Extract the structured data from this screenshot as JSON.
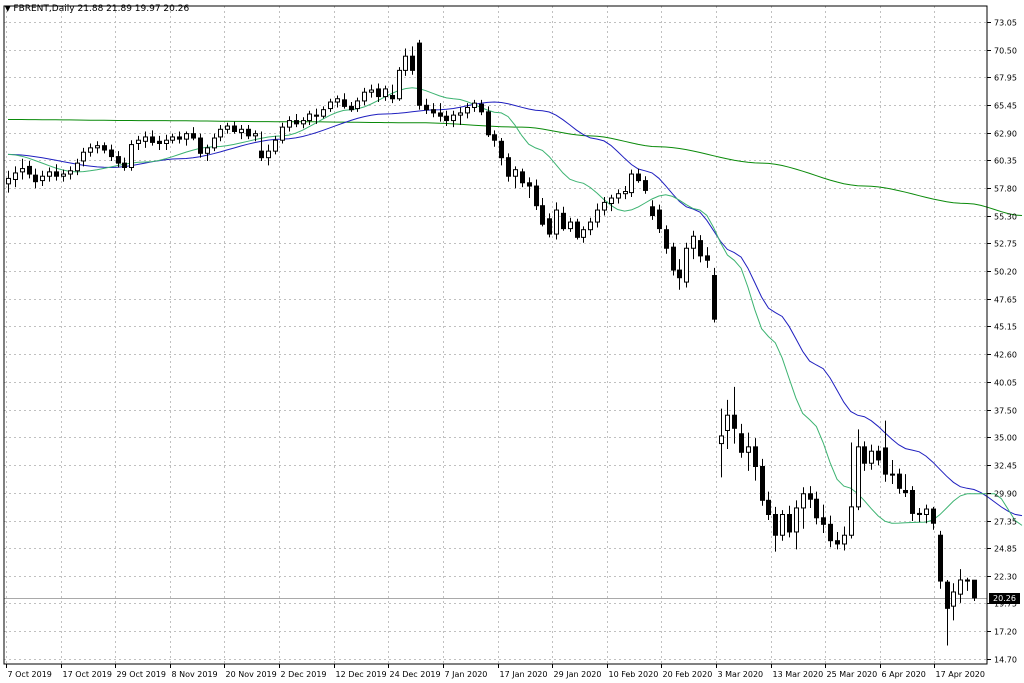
{
  "header": {
    "symbol": "FBRENT,Daily",
    "quote": "21.88 21.89 19.97 20.26"
  },
  "current_price_label": "20.26",
  "colors": {
    "background": "#ffffff",
    "grid": "#c0c0c0",
    "bull_body": "#ffffff",
    "bear_body": "#000000",
    "candle_outline": "#000000",
    "ma_fast": "#3cb371",
    "ma_mid": "#1f1fbf",
    "ma_slow": "#0a8a0a",
    "price_line": "#a9a9a9"
  },
  "chart_data": {
    "type": "candlestick",
    "title": "",
    "y_ticks": [
      "73.05",
      "70.50",
      "67.95",
      "65.45",
      "62.90",
      "60.35",
      "57.80",
      "55.30",
      "52.75",
      "50.20",
      "47.65",
      "45.15",
      "42.60",
      "40.05",
      "37.50",
      "35.00",
      "32.45",
      "29.90",
      "27.35",
      "24.85",
      "22.30",
      "19.75",
      "17.20",
      "14.70"
    ],
    "x_labels": [
      "7 Oct 2019",
      "17 Oct 2019",
      "29 Oct 2019",
      "8 Nov 2019",
      "20 Nov 2019",
      "2 Dec 2019",
      "12 Dec 2019",
      "24 Dec 2019",
      "7 Jan 2020",
      "17 Jan 2020",
      "29 Jan 2020",
      "10 Feb 2020",
      "20 Feb 2020",
      "3 Mar 2020",
      "13 Mar 2020",
      "25 Mar 2020",
      "6 Apr 2020",
      "17 Apr 2020"
    ],
    "ylim": [
      14.2,
      74.5
    ],
    "current_price": 20.26,
    "candles": [
      {
        "o": 58.2,
        "h": 59.4,
        "l": 57.4,
        "c": 58.7
      },
      {
        "o": 58.6,
        "h": 59.8,
        "l": 57.9,
        "c": 59.2
      },
      {
        "o": 59.3,
        "h": 60.5,
        "l": 58.6,
        "c": 59.6
      },
      {
        "o": 59.8,
        "h": 60.3,
        "l": 58.7,
        "c": 59.1
      },
      {
        "o": 59.0,
        "h": 59.6,
        "l": 57.8,
        "c": 58.4
      },
      {
        "o": 58.5,
        "h": 59.4,
        "l": 58.0,
        "c": 58.9
      },
      {
        "o": 58.9,
        "h": 59.7,
        "l": 58.4,
        "c": 59.3
      },
      {
        "o": 59.3,
        "h": 60.0,
        "l": 58.5,
        "c": 58.9
      },
      {
        "o": 58.9,
        "h": 59.5,
        "l": 58.4,
        "c": 59.1
      },
      {
        "o": 59.1,
        "h": 59.8,
        "l": 58.6,
        "c": 59.4
      },
      {
        "o": 59.4,
        "h": 60.5,
        "l": 59.0,
        "c": 60.1
      },
      {
        "o": 60.3,
        "h": 61.5,
        "l": 59.8,
        "c": 61.1
      },
      {
        "o": 61.1,
        "h": 61.9,
        "l": 60.7,
        "c": 61.5
      },
      {
        "o": 61.5,
        "h": 62.1,
        "l": 61.0,
        "c": 61.7
      },
      {
        "o": 61.7,
        "h": 62.0,
        "l": 61.0,
        "c": 61.3
      },
      {
        "o": 61.3,
        "h": 61.8,
        "l": 60.3,
        "c": 60.7
      },
      {
        "o": 60.7,
        "h": 61.2,
        "l": 59.7,
        "c": 60.1
      },
      {
        "o": 60.1,
        "h": 60.6,
        "l": 59.4,
        "c": 59.7
      },
      {
        "o": 59.7,
        "h": 62.2,
        "l": 59.4,
        "c": 61.8
      },
      {
        "o": 61.9,
        "h": 62.6,
        "l": 61.3,
        "c": 62.2
      },
      {
        "o": 62.1,
        "h": 63.0,
        "l": 61.5,
        "c": 62.5
      },
      {
        "o": 62.5,
        "h": 63.1,
        "l": 61.7,
        "c": 62.0
      },
      {
        "o": 62.1,
        "h": 62.6,
        "l": 61.3,
        "c": 61.9
      },
      {
        "o": 61.9,
        "h": 62.7,
        "l": 61.3,
        "c": 62.2
      },
      {
        "o": 62.2,
        "h": 62.8,
        "l": 61.9,
        "c": 62.5
      },
      {
        "o": 62.5,
        "h": 63.0,
        "l": 61.9,
        "c": 62.3
      },
      {
        "o": 62.3,
        "h": 63.0,
        "l": 61.7,
        "c": 62.8
      },
      {
        "o": 62.8,
        "h": 63.4,
        "l": 62.2,
        "c": 62.4
      },
      {
        "o": 62.4,
        "h": 62.8,
        "l": 60.6,
        "c": 61.0
      },
      {
        "o": 61.0,
        "h": 61.8,
        "l": 60.3,
        "c": 61.5
      },
      {
        "o": 61.5,
        "h": 62.8,
        "l": 61.2,
        "c": 62.4
      },
      {
        "o": 62.5,
        "h": 63.6,
        "l": 62.1,
        "c": 63.2
      },
      {
        "o": 63.2,
        "h": 63.8,
        "l": 62.8,
        "c": 63.5
      },
      {
        "o": 63.5,
        "h": 63.9,
        "l": 62.8,
        "c": 63.0
      },
      {
        "o": 62.9,
        "h": 63.6,
        "l": 62.3,
        "c": 63.2
      },
      {
        "o": 63.2,
        "h": 63.6,
        "l": 62.3,
        "c": 62.6
      },
      {
        "o": 62.6,
        "h": 63.1,
        "l": 62.1,
        "c": 62.8
      },
      {
        "o": 61.2,
        "h": 63.0,
        "l": 60.3,
        "c": 60.6
      },
      {
        "o": 60.6,
        "h": 61.8,
        "l": 59.9,
        "c": 61.2
      },
      {
        "o": 61.2,
        "h": 62.6,
        "l": 60.9,
        "c": 62.2
      },
      {
        "o": 62.2,
        "h": 63.8,
        "l": 61.9,
        "c": 63.4
      },
      {
        "o": 63.4,
        "h": 64.4,
        "l": 63.0,
        "c": 64.0
      },
      {
        "o": 64.0,
        "h": 64.6,
        "l": 63.4,
        "c": 63.7
      },
      {
        "o": 63.7,
        "h": 64.3,
        "l": 63.3,
        "c": 64.0
      },
      {
        "o": 64.0,
        "h": 64.9,
        "l": 63.6,
        "c": 64.6
      },
      {
        "o": 64.5,
        "h": 65.1,
        "l": 63.7,
        "c": 64.4
      },
      {
        "o": 64.4,
        "h": 65.3,
        "l": 64.2,
        "c": 65.0
      },
      {
        "o": 65.1,
        "h": 66.0,
        "l": 64.8,
        "c": 65.7
      },
      {
        "o": 65.7,
        "h": 66.3,
        "l": 65.2,
        "c": 66.0
      },
      {
        "o": 65.9,
        "h": 66.5,
        "l": 65.1,
        "c": 65.3
      },
      {
        "o": 65.3,
        "h": 65.7,
        "l": 64.8,
        "c": 65.0
      },
      {
        "o": 65.1,
        "h": 66.1,
        "l": 64.8,
        "c": 65.8
      },
      {
        "o": 65.8,
        "h": 67.0,
        "l": 65.4,
        "c": 66.6
      },
      {
        "o": 66.6,
        "h": 67.3,
        "l": 66.1,
        "c": 66.8
      },
      {
        "o": 66.9,
        "h": 67.4,
        "l": 65.7,
        "c": 66.2
      },
      {
        "o": 66.2,
        "h": 67.2,
        "l": 65.8,
        "c": 66.9
      },
      {
        "o": 66.3,
        "h": 67.3,
        "l": 65.6,
        "c": 66.0
      },
      {
        "o": 66.0,
        "h": 68.9,
        "l": 65.8,
        "c": 68.6
      },
      {
        "o": 68.6,
        "h": 70.6,
        "l": 68.1,
        "c": 69.9
      },
      {
        "o": 69.9,
        "h": 70.8,
        "l": 68.2,
        "c": 68.6
      },
      {
        "o": 71.1,
        "h": 71.4,
        "l": 65.0,
        "c": 65.4
      },
      {
        "o": 65.4,
        "h": 66.0,
        "l": 64.6,
        "c": 65.0
      },
      {
        "o": 65.0,
        "h": 65.6,
        "l": 64.3,
        "c": 64.7
      },
      {
        "o": 64.7,
        "h": 65.6,
        "l": 63.9,
        "c": 64.4
      },
      {
        "o": 64.4,
        "h": 64.9,
        "l": 63.5,
        "c": 64.0
      },
      {
        "o": 64.0,
        "h": 64.9,
        "l": 63.4,
        "c": 64.5
      },
      {
        "o": 64.5,
        "h": 65.2,
        "l": 63.6,
        "c": 64.7
      },
      {
        "o": 64.7,
        "h": 65.6,
        "l": 64.2,
        "c": 65.2
      },
      {
        "o": 65.2,
        "h": 65.9,
        "l": 64.8,
        "c": 65.6
      },
      {
        "o": 65.5,
        "h": 65.9,
        "l": 64.5,
        "c": 64.8
      },
      {
        "o": 64.8,
        "h": 65.3,
        "l": 62.5,
        "c": 62.7
      },
      {
        "o": 62.7,
        "h": 63.1,
        "l": 61.6,
        "c": 62.2
      },
      {
        "o": 62.1,
        "h": 62.4,
        "l": 59.9,
        "c": 60.6
      },
      {
        "o": 60.6,
        "h": 61.0,
        "l": 58.4,
        "c": 58.9
      },
      {
        "o": 58.9,
        "h": 59.8,
        "l": 57.8,
        "c": 59.5
      },
      {
        "o": 59.3,
        "h": 59.6,
        "l": 57.9,
        "c": 58.3
      },
      {
        "o": 58.3,
        "h": 58.8,
        "l": 56.9,
        "c": 58.0
      },
      {
        "o": 58.0,
        "h": 58.6,
        "l": 55.8,
        "c": 56.2
      },
      {
        "o": 56.2,
        "h": 56.9,
        "l": 54.3,
        "c": 54.5
      },
      {
        "o": 55.0,
        "h": 55.5,
        "l": 53.3,
        "c": 53.6
      },
      {
        "o": 53.6,
        "h": 56.5,
        "l": 53.1,
        "c": 55.8
      },
      {
        "o": 55.5,
        "h": 56.1,
        "l": 53.9,
        "c": 54.1
      },
      {
        "o": 54.1,
        "h": 55.1,
        "l": 53.8,
        "c": 54.7
      },
      {
        "o": 54.7,
        "h": 55.0,
        "l": 53.1,
        "c": 53.3
      },
      {
        "o": 53.3,
        "h": 54.3,
        "l": 52.8,
        "c": 54.0
      },
      {
        "o": 54.0,
        "h": 55.1,
        "l": 53.5,
        "c": 54.7
      },
      {
        "o": 54.7,
        "h": 56.4,
        "l": 54.2,
        "c": 55.8
      },
      {
        "o": 55.8,
        "h": 57.0,
        "l": 55.3,
        "c": 56.5
      },
      {
        "o": 56.4,
        "h": 57.2,
        "l": 55.7,
        "c": 56.9
      },
      {
        "o": 56.9,
        "h": 57.7,
        "l": 56.4,
        "c": 57.3
      },
      {
        "o": 57.3,
        "h": 58.0,
        "l": 56.8,
        "c": 57.5
      },
      {
        "o": 57.4,
        "h": 59.5,
        "l": 57.0,
        "c": 59.1
      },
      {
        "o": 59.1,
        "h": 59.6,
        "l": 58.3,
        "c": 58.5
      },
      {
        "o": 58.5,
        "h": 58.9,
        "l": 57.3,
        "c": 57.6
      },
      {
        "o": 56.1,
        "h": 56.7,
        "l": 54.9,
        "c": 55.3
      },
      {
        "o": 55.8,
        "h": 56.3,
        "l": 53.7,
        "c": 54.1
      },
      {
        "o": 54.0,
        "h": 54.4,
        "l": 51.8,
        "c": 52.3
      },
      {
        "o": 52.4,
        "h": 52.8,
        "l": 49.8,
        "c": 50.3
      },
      {
        "o": 50.3,
        "h": 51.3,
        "l": 48.5,
        "c": 49.6
      },
      {
        "o": 49.2,
        "h": 52.8,
        "l": 48.7,
        "c": 52.3
      },
      {
        "o": 52.3,
        "h": 53.9,
        "l": 51.3,
        "c": 53.4
      },
      {
        "o": 53.0,
        "h": 53.5,
        "l": 51.0,
        "c": 51.6
      },
      {
        "o": 51.6,
        "h": 52.4,
        "l": 50.5,
        "c": 51.2
      },
      {
        "o": 49.8,
        "h": 50.5,
        "l": 45.5,
        "c": 45.8
      },
      {
        "o": 34.4,
        "h": 37.6,
        "l": 31.3,
        "c": 35.1
      },
      {
        "o": 35.6,
        "h": 38.4,
        "l": 33.9,
        "c": 37.0
      },
      {
        "o": 37.0,
        "h": 39.6,
        "l": 34.4,
        "c": 35.8
      },
      {
        "o": 35.3,
        "h": 36.2,
        "l": 33.1,
        "c": 33.6
      },
      {
        "o": 33.6,
        "h": 35.4,
        "l": 31.9,
        "c": 34.1
      },
      {
        "o": 34.1,
        "h": 34.9,
        "l": 31.0,
        "c": 32.3
      },
      {
        "o": 32.3,
        "h": 33.0,
        "l": 28.7,
        "c": 29.2
      },
      {
        "o": 29.2,
        "h": 30.0,
        "l": 27.4,
        "c": 27.9
      },
      {
        "o": 27.9,
        "h": 28.6,
        "l": 24.5,
        "c": 26.0
      },
      {
        "o": 26.0,
        "h": 28.3,
        "l": 25.5,
        "c": 27.9
      },
      {
        "o": 27.9,
        "h": 28.7,
        "l": 25.8,
        "c": 26.3
      },
      {
        "o": 26.3,
        "h": 29.2,
        "l": 24.7,
        "c": 28.5
      },
      {
        "o": 28.5,
        "h": 30.4,
        "l": 26.6,
        "c": 29.8
      },
      {
        "o": 29.8,
        "h": 30.5,
        "l": 28.5,
        "c": 29.3
      },
      {
        "o": 29.3,
        "h": 30.0,
        "l": 27.0,
        "c": 27.6
      },
      {
        "o": 27.6,
        "h": 28.8,
        "l": 26.2,
        "c": 27.0
      },
      {
        "o": 27.0,
        "h": 27.8,
        "l": 24.9,
        "c": 25.5
      },
      {
        "o": 25.5,
        "h": 26.3,
        "l": 24.7,
        "c": 25.2
      },
      {
        "o": 25.2,
        "h": 26.8,
        "l": 24.6,
        "c": 26.0
      },
      {
        "o": 26.0,
        "h": 34.5,
        "l": 25.7,
        "c": 28.6
      },
      {
        "o": 28.6,
        "h": 35.7,
        "l": 28.3,
        "c": 34.1
      },
      {
        "o": 34.1,
        "h": 34.6,
        "l": 31.9,
        "c": 32.6
      },
      {
        "o": 32.6,
        "h": 34.3,
        "l": 32.0,
        "c": 33.7
      },
      {
        "o": 33.7,
        "h": 34.2,
        "l": 32.4,
        "c": 32.9
      },
      {
        "o": 34.0,
        "h": 36.5,
        "l": 30.9,
        "c": 31.6
      },
      {
        "o": 31.6,
        "h": 32.9,
        "l": 30.7,
        "c": 31.6
      },
      {
        "o": 31.6,
        "h": 32.1,
        "l": 29.8,
        "c": 30.3
      },
      {
        "o": 30.1,
        "h": 31.6,
        "l": 29.5,
        "c": 29.9
      },
      {
        "o": 30.1,
        "h": 30.5,
        "l": 27.3,
        "c": 28.0
      },
      {
        "o": 28.0,
        "h": 28.5,
        "l": 27.2,
        "c": 27.9
      },
      {
        "o": 27.9,
        "h": 28.8,
        "l": 27.1,
        "c": 28.4
      },
      {
        "o": 28.4,
        "h": 28.6,
        "l": 26.5,
        "c": 27.1
      },
      {
        "o": 26.0,
        "h": 26.4,
        "l": 21.1,
        "c": 21.8
      },
      {
        "o": 21.7,
        "h": 21.9,
        "l": 15.9,
        "c": 19.3
      },
      {
        "o": 19.5,
        "h": 21.6,
        "l": 18.2,
        "c": 20.8
      },
      {
        "o": 20.6,
        "h": 22.9,
        "l": 19.8,
        "c": 21.9
      },
      {
        "o": 21.9,
        "h": 22.1,
        "l": 20.9,
        "c": 21.8
      },
      {
        "o": 21.88,
        "h": 21.89,
        "l": 19.97,
        "c": 20.26
      }
    ],
    "ma_fast_anchors": [
      [
        0,
        60.9
      ],
      [
        10,
        59.3
      ],
      [
        20,
        60.2
      ],
      [
        30,
        61.6
      ],
      [
        40,
        62.6
      ],
      [
        50,
        65.0
      ],
      [
        59,
        67.0
      ],
      [
        65,
        66.0
      ],
      [
        72,
        64.7
      ],
      [
        77,
        61.5
      ],
      [
        83,
        58.4
      ],
      [
        90,
        55.7
      ],
      [
        96,
        57.2
      ],
      [
        101,
        55.8
      ],
      [
        106,
        51.2
      ],
      [
        111,
        44.2
      ],
      [
        117,
        36.6
      ],
      [
        122,
        30.5
      ],
      [
        129,
        27.1
      ],
      [
        134,
        27.2
      ],
      [
        140,
        29.8
      ],
      [
        144,
        29.8
      ],
      [
        148,
        26.9
      ]
    ],
    "ma_mid_anchors": [
      [
        0,
        60.9
      ],
      [
        15,
        59.7
      ],
      [
        25,
        60.5
      ],
      [
        40,
        62.3
      ],
      [
        55,
        64.6
      ],
      [
        63,
        65.0
      ],
      [
        71,
        65.7
      ],
      [
        78,
        64.9
      ],
      [
        86,
        62.3
      ],
      [
        93,
        59.4
      ],
      [
        100,
        55.9
      ],
      [
        106,
        51.9
      ],
      [
        112,
        46.4
      ],
      [
        118,
        41.6
      ],
      [
        124,
        37.0
      ],
      [
        132,
        33.8
      ],
      [
        140,
        30.3
      ],
      [
        148,
        27.8
      ]
    ],
    "ma_slow_anchors": [
      [
        0,
        64.1
      ],
      [
        20,
        64.0
      ],
      [
        40,
        63.9
      ],
      [
        60,
        63.8
      ],
      [
        75,
        63.4
      ],
      [
        85,
        62.6
      ],
      [
        95,
        61.6
      ],
      [
        110,
        60.1
      ],
      [
        125,
        58.0
      ],
      [
        140,
        56.4
      ],
      [
        148,
        55.3
      ]
    ]
  }
}
